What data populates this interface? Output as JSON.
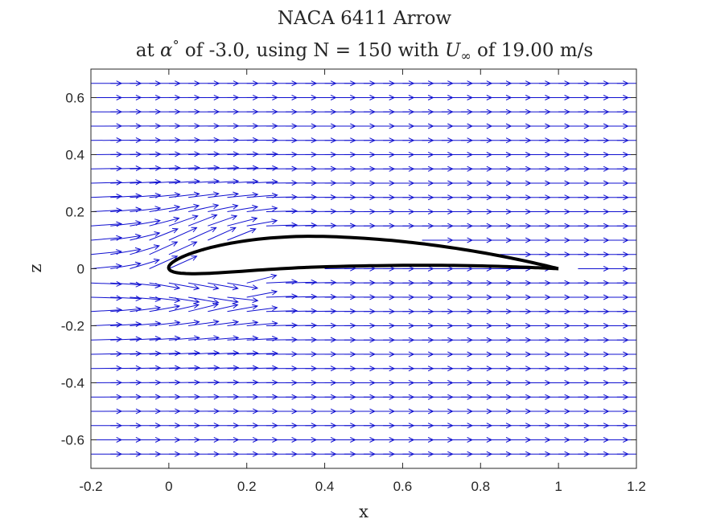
{
  "chart_data": {
    "type": "quiver",
    "title": "NACA 6411 Arrow",
    "subtitle_parts": [
      "at ",
      "α",
      "°",
      " of -3.0, using N = 150 with ",
      "U",
      "∞",
      " of 19.00 m/s"
    ],
    "xlabel": "x",
    "ylabel": "z",
    "xlim": [
      -0.2,
      1.2
    ],
    "ylim": [
      -0.7,
      0.7
    ],
    "x_ticks": [
      -0.2,
      0,
      0.2,
      0.4,
      0.6,
      0.8,
      1,
      1.2
    ],
    "x_tick_labels": [
      "-0.2",
      "0",
      "0.2",
      "0.4",
      "0.6",
      "0.8",
      "1",
      "1.2"
    ],
    "y_ticks": [
      -0.6,
      -0.4,
      -0.2,
      0,
      0.2,
      0.4,
      0.6
    ],
    "y_tick_labels": [
      "-0.6",
      "-0.4",
      "-0.2",
      "0",
      "0.2",
      "0.4",
      "0.6"
    ],
    "grid": false,
    "legend": "none",
    "airfoil": {
      "name": "NACA 6411",
      "color": "#000000",
      "max_camber": 0.06,
      "camber_position": 0.4,
      "thickness": 0.11
    },
    "velocity_field": {
      "color": "#1010d0",
      "x_range": [
        -0.2,
        1.2
      ],
      "z_range": [
        -0.65,
        0.65
      ],
      "columns": 29,
      "rows": 27,
      "freestream_direction": "+x"
    }
  }
}
